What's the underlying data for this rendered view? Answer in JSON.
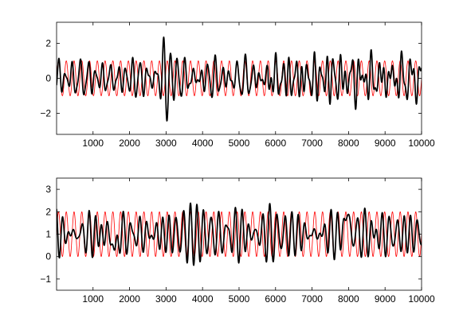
{
  "chart_data": [
    {
      "type": "line",
      "title": "",
      "xlabel": "",
      "ylabel": "",
      "xlim": [
        1,
        10000
      ],
      "ylim": [
        -3.2,
        3.2
      ],
      "xticks": [
        1000,
        2000,
        3000,
        4000,
        5000,
        6000,
        7000,
        8000,
        9000,
        10000
      ],
      "yticks": [
        -2,
        0,
        2
      ],
      "grid": false,
      "legend": "none",
      "series": [
        {
          "color": "#ff0000",
          "style": "thin",
          "kind": "reference-sinusoid",
          "amplitude": 1.0,
          "offset": 0.0,
          "cycles": 47
        },
        {
          "color": "#000000",
          "style": "thick",
          "kind": "noisy-oscillating-signal",
          "amplitude_approx": 1.0,
          "offset": 0.0,
          "peak": {
            "x": 3000,
            "y_max": 2.6,
            "y_min": -2.4
          },
          "amplitude_change_near_x": 5800
        }
      ]
    },
    {
      "type": "line",
      "title": "",
      "xlabel": "",
      "ylabel": "",
      "xlim": [
        1,
        10000
      ],
      "ylim": [
        -1.5,
        3.5
      ],
      "xticks": [
        1000,
        2000,
        3000,
        4000,
        5000,
        6000,
        7000,
        8000,
        9000,
        10000
      ],
      "yticks": [
        -1,
        0,
        1,
        2,
        3
      ],
      "grid": false,
      "legend": "none",
      "series": [
        {
          "color": "#ff0000",
          "style": "thin",
          "kind": "reference-sinusoid",
          "amplitude": 1.0,
          "offset": 1.0,
          "cycles": 47
        },
        {
          "color": "#000000",
          "style": "thick",
          "kind": "noisy-oscillating-signal",
          "amplitude_approx": 1.1,
          "offset": 1.0,
          "max_approx": {
            "x": 7950,
            "y": 3.1
          },
          "min_approx": {
            "x": 1600,
            "y": -0.9
          }
        }
      ]
    }
  ]
}
